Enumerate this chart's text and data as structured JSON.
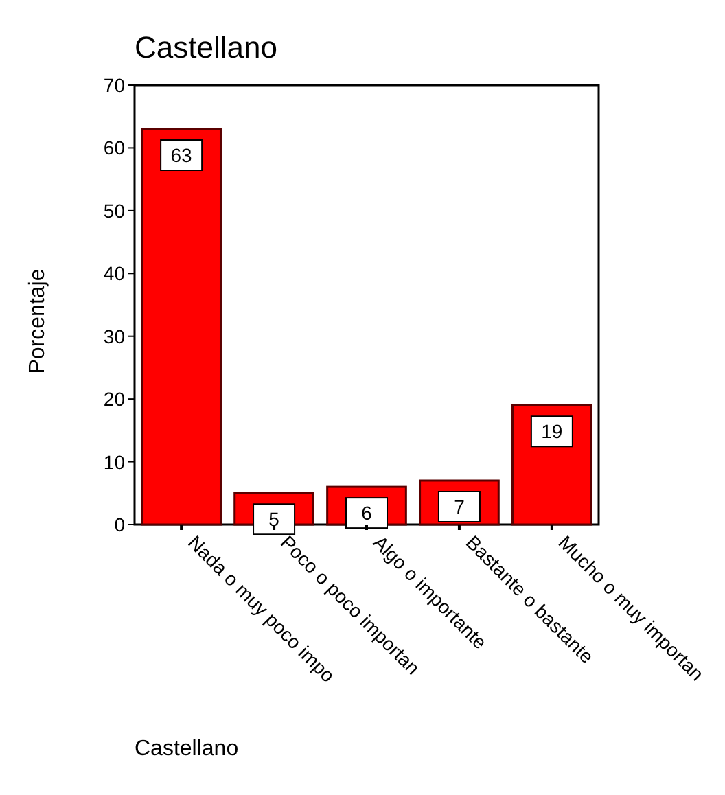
{
  "chart_data": {
    "type": "bar",
    "title": "Castellano",
    "xlabel": "Castellano",
    "ylabel": "Porcentaje",
    "categories": [
      "Nada o muy poco impo",
      "Poco o poco importan",
      "Algo o importante",
      "Bastante o bastante",
      "Mucho o muy importan"
    ],
    "values": [
      63,
      5,
      6,
      7,
      19
    ],
    "color": "#ff0000",
    "ylim": [
      0,
      70
    ],
    "yticks": [
      0,
      10,
      20,
      30,
      40,
      50,
      60,
      70
    ],
    "data_labels": true,
    "grid": false
  }
}
